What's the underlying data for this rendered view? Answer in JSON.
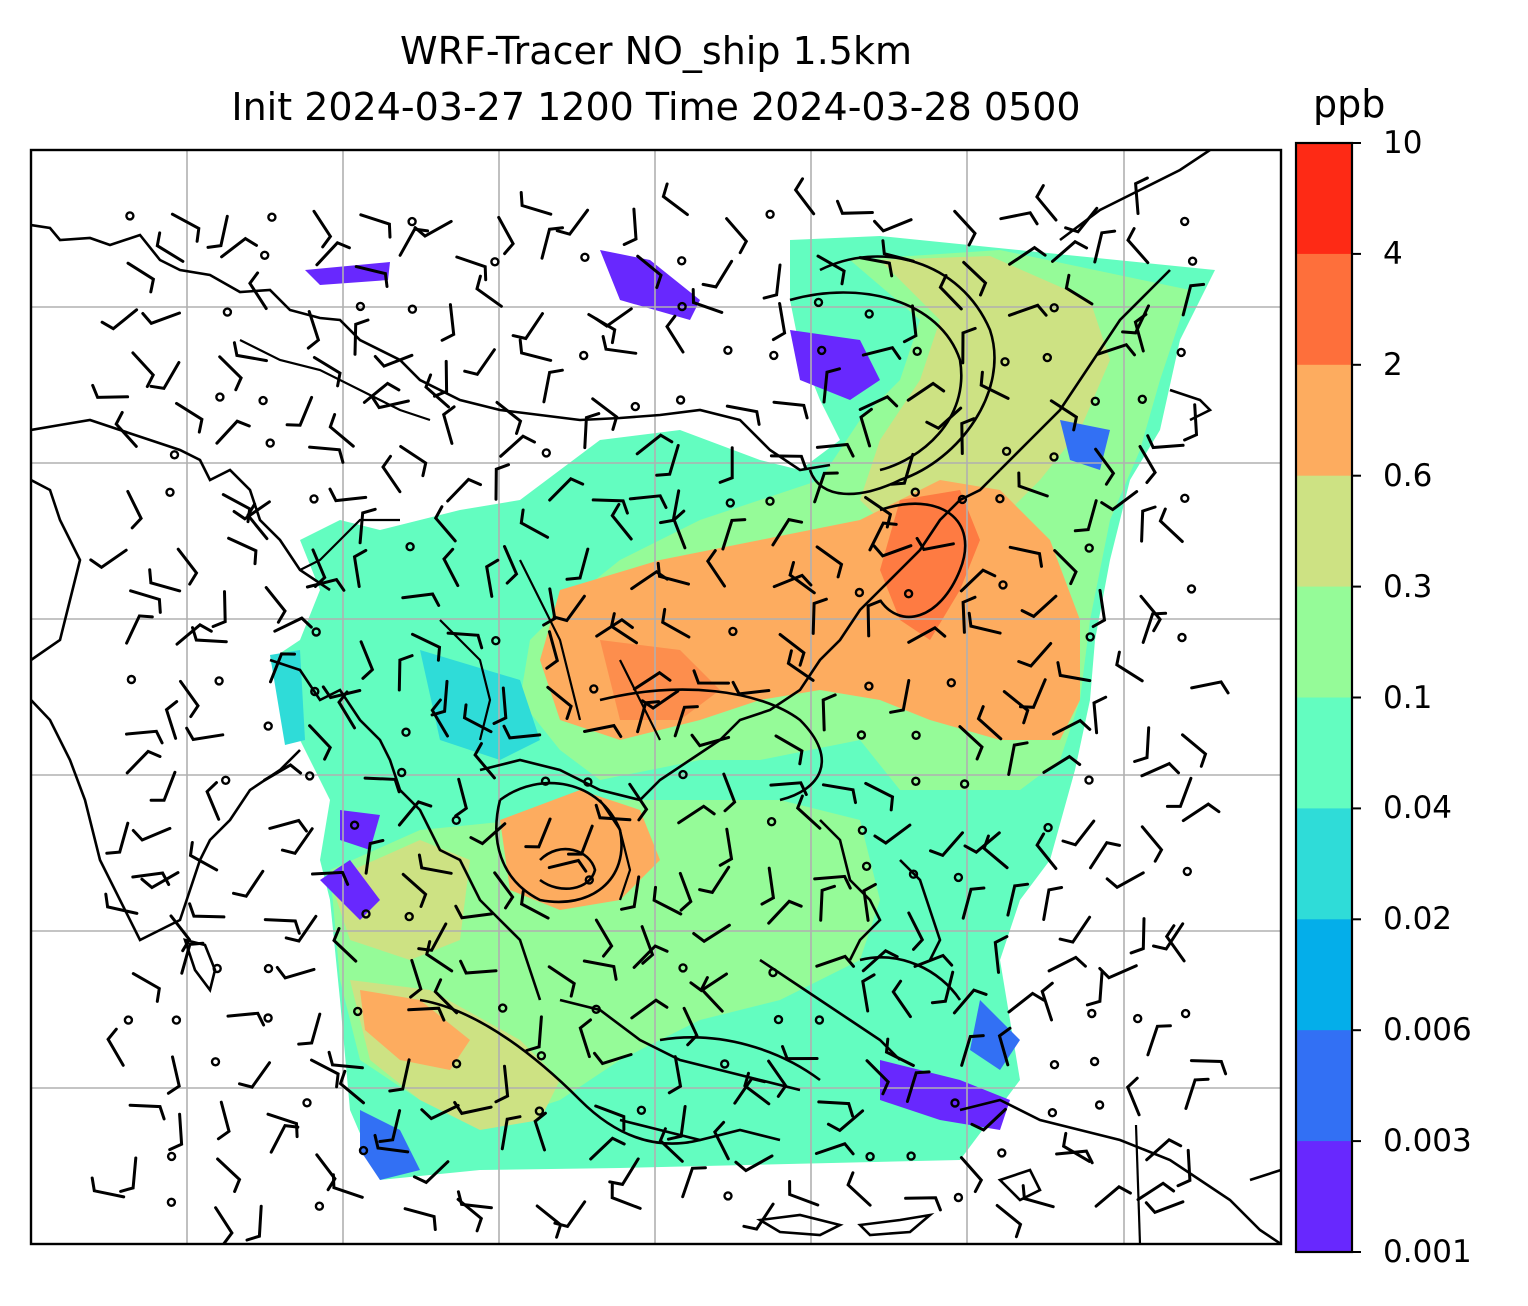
{
  "title_line1": "WRF-Tracer NO_ship 1.5km",
  "title_line2": "Init 2024-03-27 1200 Time 2024-03-28 0500",
  "colorbar": {
    "unit": "ppb",
    "ticks": [
      "10",
      "4",
      "2",
      "0.6",
      "0.3",
      "0.1",
      "0.04",
      "0.02",
      "0.006",
      "0.003",
      "0.001"
    ],
    "colors": [
      "#fe2a15",
      "#fe6f3b",
      "#fdac5f",
      "#cde283",
      "#95fb98",
      "#63fdc0",
      "#2fdcd8",
      "#04aeea",
      "#3270f4",
      "#6828fe"
    ]
  },
  "map": {
    "features": [
      "coastlines",
      "country-borders",
      "gridlines",
      "tracer-field",
      "pressure-contours",
      "wind-barbs"
    ]
  }
}
